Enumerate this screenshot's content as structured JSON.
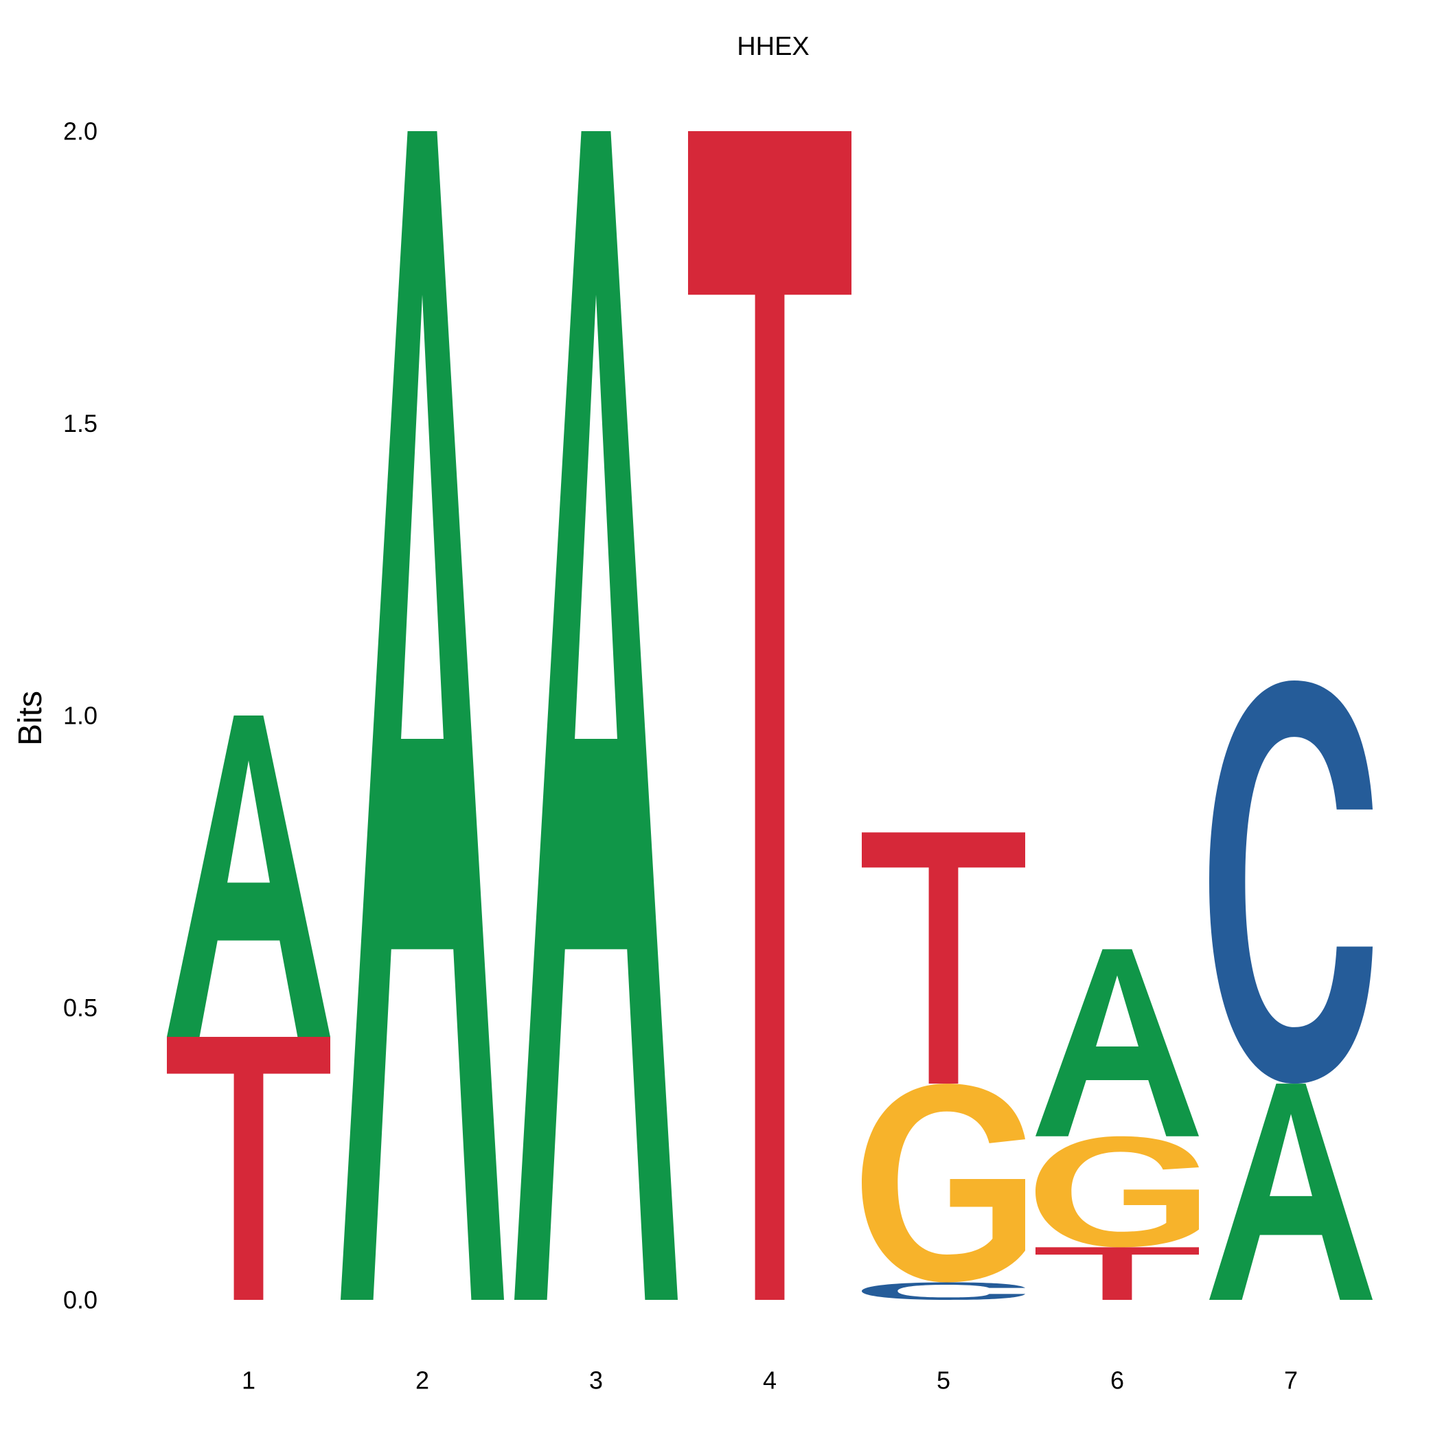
{
  "chart_data": {
    "type": "sequence-logo",
    "title": "HHEX",
    "ylabel": "Bits",
    "xlabel": "",
    "ylim": [
      0,
      2
    ],
    "yticks": [
      "0.0",
      "0.5",
      "1.0",
      "1.5",
      "2.0"
    ],
    "ytick_values": [
      0,
      0.5,
      1,
      1.5,
      2
    ],
    "positions": [
      "1",
      "2",
      "3",
      "4",
      "5",
      "6",
      "7"
    ],
    "colors": {
      "A": "#109648",
      "C": "#255c99",
      "G": "#f7b32b",
      "T": "#d62839"
    },
    "stacks": [
      [
        {
          "letter": "T",
          "bits": 0.45
        },
        {
          "letter": "A",
          "bits": 0.55
        }
      ],
      [
        {
          "letter": "A",
          "bits": 2.0
        }
      ],
      [
        {
          "letter": "A",
          "bits": 2.0
        }
      ],
      [
        {
          "letter": "T",
          "bits": 2.0
        }
      ],
      [
        {
          "letter": "C",
          "bits": 0.03
        },
        {
          "letter": "G",
          "bits": 0.34
        },
        {
          "letter": "T",
          "bits": 0.43
        }
      ],
      [
        {
          "letter": "T",
          "bits": 0.09
        },
        {
          "letter": "G",
          "bits": 0.19
        },
        {
          "letter": "A",
          "bits": 0.32
        }
      ],
      [
        {
          "letter": "A",
          "bits": 0.37
        },
        {
          "letter": "C",
          "bits": 0.69
        }
      ]
    ],
    "grid": false,
    "legend": "none"
  }
}
